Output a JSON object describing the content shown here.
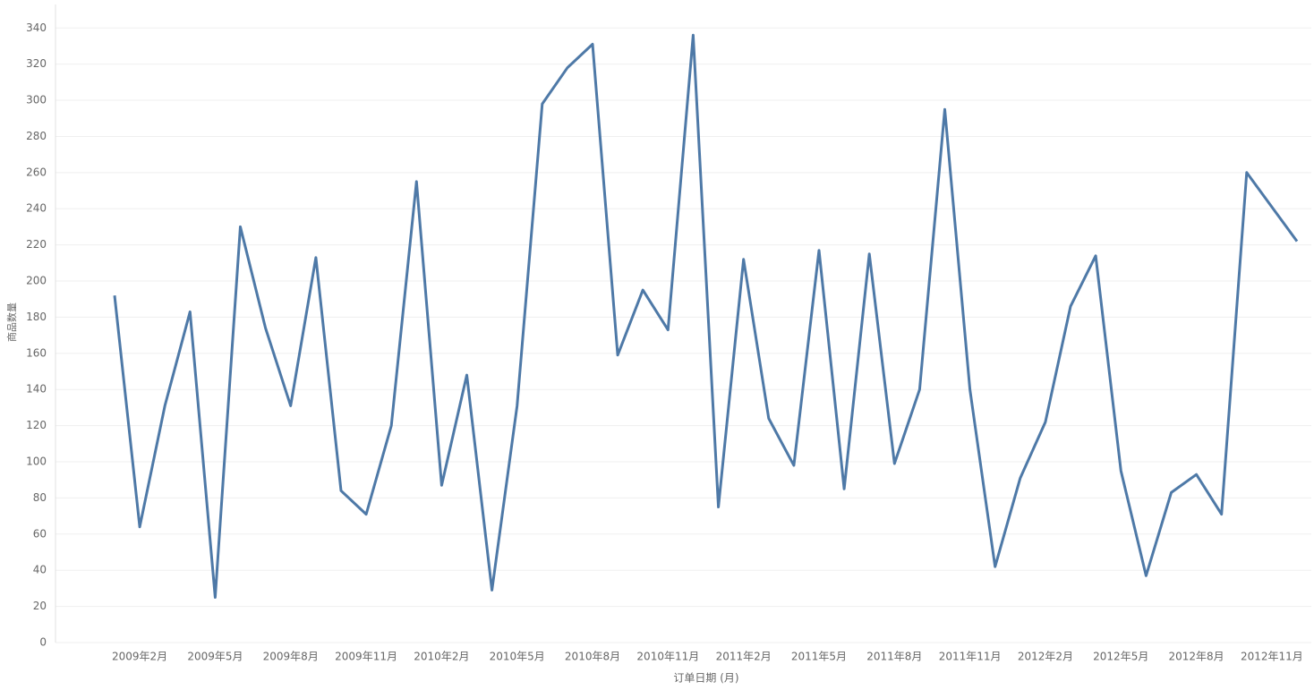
{
  "chart_data": {
    "type": "line",
    "x_label": "订单日期 (月)",
    "y_label": "商品数量",
    "categories": [
      null,
      "2009年2月",
      null,
      null,
      "2009年5月",
      null,
      null,
      "2009年8月",
      null,
      null,
      "2009年11月",
      null,
      null,
      "2010年2月",
      null,
      null,
      "2010年5月",
      null,
      null,
      "2010年8月",
      null,
      null,
      "2010年11月",
      null,
      null,
      "2011年2月",
      null,
      null,
      "2011年5月",
      null,
      null,
      "2011年8月",
      null,
      null,
      "2011年11月",
      null,
      null,
      "2012年2月",
      null,
      null,
      "2012年5月",
      null,
      null,
      "2012年8月",
      null,
      null,
      "2012年11月",
      null
    ],
    "series": [
      {
        "name": "商品数量",
        "color": "#4e79a7",
        "values": [
          192,
          64,
          131,
          183,
          25,
          230,
          174,
          131,
          213,
          84,
          71,
          120,
          255,
          87,
          148,
          29,
          131,
          298,
          318,
          331,
          159,
          195,
          173,
          336,
          75,
          212,
          124,
          98,
          217,
          85,
          215,
          99,
          140,
          295,
          140,
          42,
          91,
          122,
          186,
          214,
          95,
          37,
          83,
          93,
          71,
          260,
          241,
          222
        ]
      }
    ],
    "ylim": [
      0,
      353
    ],
    "yticks": [
      0,
      20,
      40,
      60,
      80,
      100,
      120,
      140,
      160,
      180,
      200,
      220,
      240,
      260,
      280,
      300,
      320,
      340
    ],
    "grid": true
  }
}
